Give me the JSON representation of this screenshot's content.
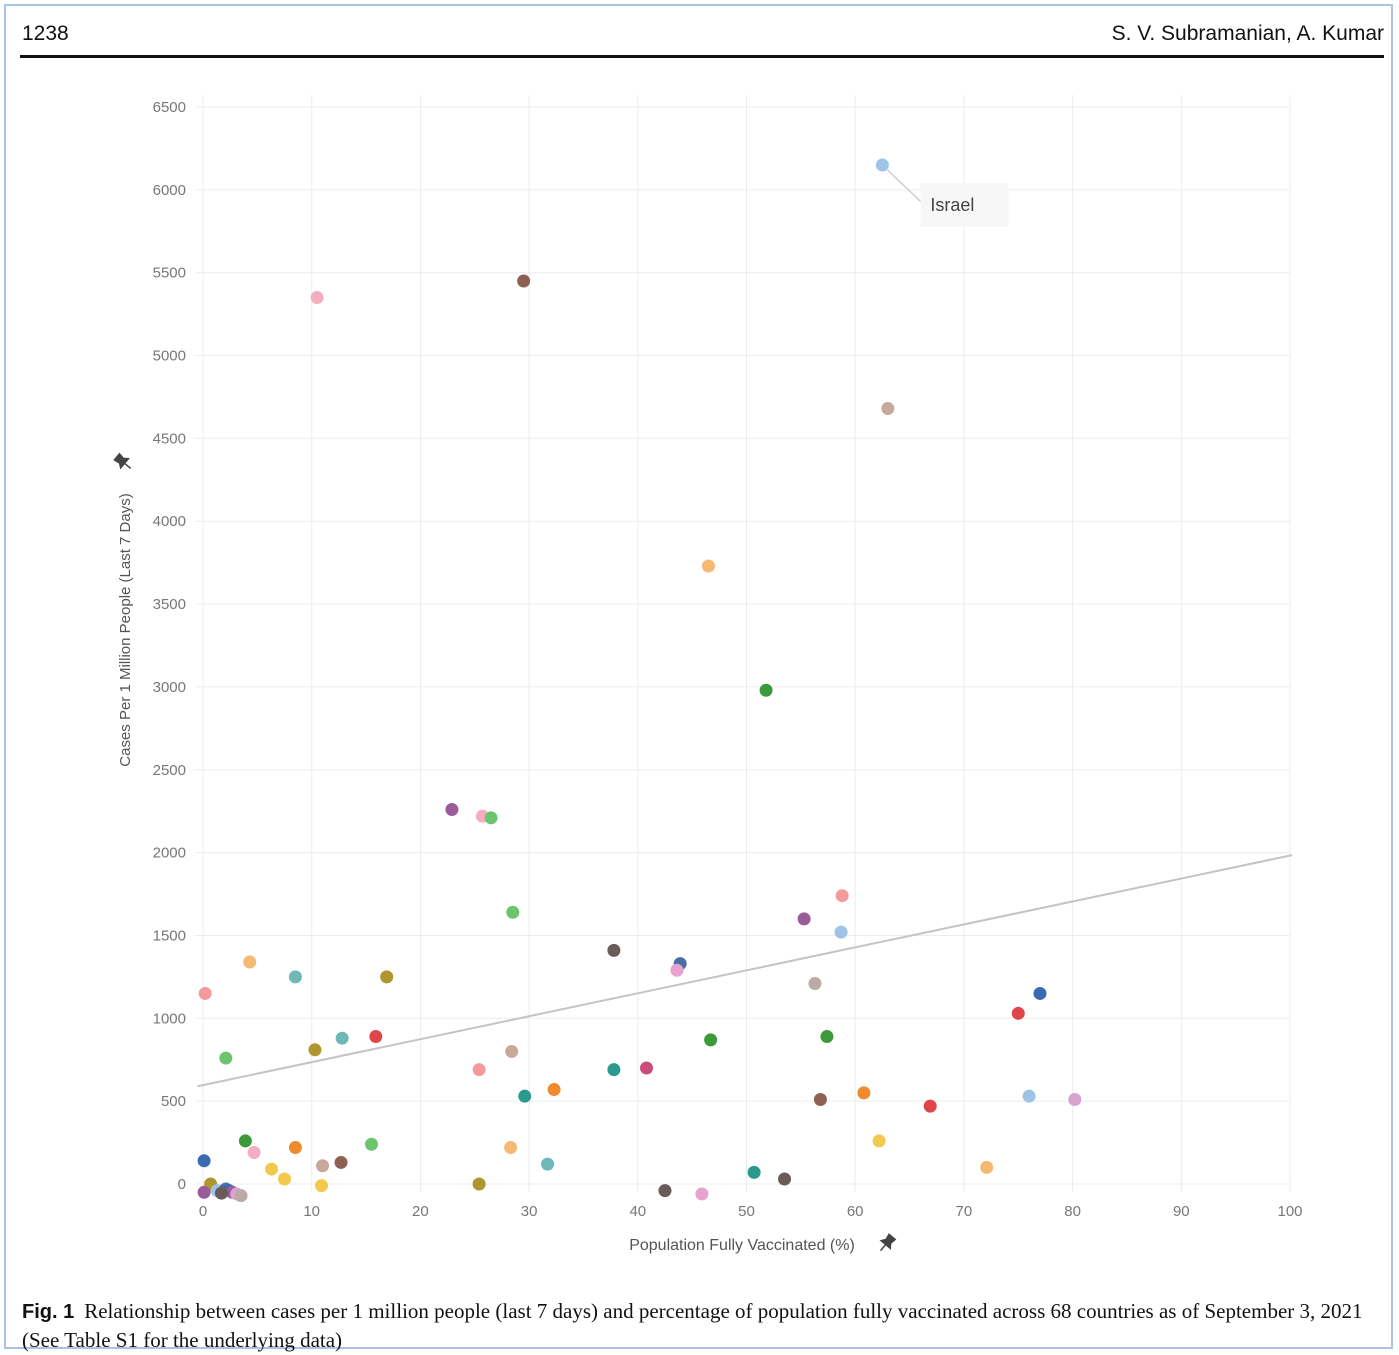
{
  "header": {
    "page_number": "1238",
    "authors": "S. V. Subramanian, A. Kumar"
  },
  "caption": {
    "label": "Fig. 1",
    "text": "Relationship between cases per 1 million people (last 7 days) and percentage of population fully vaccinated across 68 countries as of September 3, 2021 (See Table S1 for the underlying data)"
  },
  "chart_data": {
    "type": "scatter",
    "xlabel": "Population Fully Vaccinated (%)",
    "ylabel": "Cases Per 1 Million People (Last 7 Days)",
    "xlim": [
      0,
      100
    ],
    "ylim": [
      0,
      6500
    ],
    "xticks": [
      "0",
      "10",
      "20",
      "30",
      "40",
      "50",
      "60",
      "70",
      "80",
      "90",
      "100"
    ],
    "yticks": [
      "0",
      "500",
      "1000",
      "1500",
      "2000",
      "2500",
      "3000",
      "3500",
      "4000",
      "4500",
      "5000",
      "5500",
      "6000",
      "6500"
    ],
    "grid": true,
    "pin_icon": "pin-icon",
    "trendline": {
      "x": [
        -0.5,
        100.2
      ],
      "y": [
        590,
        1985
      ],
      "color": "#c4c4c4"
    },
    "annotations": [
      {
        "text": "Israel",
        "x": 62.5,
        "y": 6150
      }
    ],
    "points": [
      {
        "x": 62.5,
        "y": 6150,
        "color": "#9dc3e6"
      },
      {
        "x": 29.5,
        "y": 5450,
        "color": "#8c6151"
      },
      {
        "x": 10.5,
        "y": 5350,
        "color": "#f4adc1"
      },
      {
        "x": 63,
        "y": 4680,
        "color": "#c9a89b"
      },
      {
        "x": 46.5,
        "y": 3730,
        "color": "#f5b971"
      },
      {
        "x": 51.8,
        "y": 2980,
        "color": "#3b9b3b"
      },
      {
        "x": 22.9,
        "y": 2260,
        "color": "#9b5b9b"
      },
      {
        "x": 25.7,
        "y": 2220,
        "color": "#f4adc1"
      },
      {
        "x": 26.5,
        "y": 2210,
        "color": "#6cc46c"
      },
      {
        "x": 28.5,
        "y": 1640,
        "color": "#6cc46c"
      },
      {
        "x": 58.8,
        "y": 1740,
        "color": "#f49a9a"
      },
      {
        "x": 55.3,
        "y": 1600,
        "color": "#9b5b9b"
      },
      {
        "x": 58.7,
        "y": 1520,
        "color": "#9dc3e6"
      },
      {
        "x": 37.8,
        "y": 1410,
        "color": "#6b5a5a"
      },
      {
        "x": 43.9,
        "y": 1330,
        "color": "#4a6fa5"
      },
      {
        "x": 43.6,
        "y": 1290,
        "color": "#e7a2cf"
      },
      {
        "x": 56.3,
        "y": 1210,
        "color": "#bcaaa4"
      },
      {
        "x": 77,
        "y": 1150,
        "color": "#3a6bb0"
      },
      {
        "x": 75,
        "y": 1030,
        "color": "#e0454a"
      },
      {
        "x": 0.2,
        "y": 1150,
        "color": "#f49a9a"
      },
      {
        "x": 4.3,
        "y": 1340,
        "color": "#f5b971"
      },
      {
        "x": 8.5,
        "y": 1250,
        "color": "#6fb8b8"
      },
      {
        "x": 16.9,
        "y": 1250,
        "color": "#b0962e"
      },
      {
        "x": 12.8,
        "y": 880,
        "color": "#6fb8b8"
      },
      {
        "x": 15.9,
        "y": 890,
        "color": "#e0454a"
      },
      {
        "x": 10.3,
        "y": 810,
        "color": "#b0962e"
      },
      {
        "x": 2.1,
        "y": 760,
        "color": "#6cc46c"
      },
      {
        "x": 46.7,
        "y": 870,
        "color": "#3b9b3b"
      },
      {
        "x": 57.4,
        "y": 890,
        "color": "#3b9b3b"
      },
      {
        "x": 28.4,
        "y": 800,
        "color": "#c9a89b"
      },
      {
        "x": 25.4,
        "y": 690,
        "color": "#f49a9a"
      },
      {
        "x": 37.8,
        "y": 690,
        "color": "#2a9a8f"
      },
      {
        "x": 40.8,
        "y": 700,
        "color": "#c94c7a"
      },
      {
        "x": 29.6,
        "y": 530,
        "color": "#2a9a8f"
      },
      {
        "x": 32.3,
        "y": 570,
        "color": "#ef8b2c"
      },
      {
        "x": 56.8,
        "y": 510,
        "color": "#8c6151"
      },
      {
        "x": 60.8,
        "y": 550,
        "color": "#ef8b2c"
      },
      {
        "x": 66.9,
        "y": 470,
        "color": "#e0454a"
      },
      {
        "x": 76,
        "y": 530,
        "color": "#9dc3e6"
      },
      {
        "x": 80.2,
        "y": 510,
        "color": "#d9a3d0"
      },
      {
        "x": 62.2,
        "y": 260,
        "color": "#f2c94c"
      },
      {
        "x": 72.1,
        "y": 100,
        "color": "#f5b971"
      },
      {
        "x": 50.7,
        "y": 70,
        "color": "#2a9a8f"
      },
      {
        "x": 53.5,
        "y": 30,
        "color": "#6b5a5a"
      },
      {
        "x": 42.5,
        "y": -40,
        "color": "#6b5a5a"
      },
      {
        "x": 45.9,
        "y": -60,
        "color": "#e7a2cf"
      },
      {
        "x": 31.7,
        "y": 120,
        "color": "#6fb8b8"
      },
      {
        "x": 28.3,
        "y": 220,
        "color": "#f5b971"
      },
      {
        "x": 25.4,
        "y": 0,
        "color": "#b0962e"
      },
      {
        "x": 15.5,
        "y": 240,
        "color": "#6cc46c"
      },
      {
        "x": 12.7,
        "y": 130,
        "color": "#8c6151"
      },
      {
        "x": 11,
        "y": 110,
        "color": "#c9a89b"
      },
      {
        "x": 10.9,
        "y": -10,
        "color": "#f2c94c"
      },
      {
        "x": 8.5,
        "y": 220,
        "color": "#ef8b2c"
      },
      {
        "x": 7.5,
        "y": 30,
        "color": "#f2c94c"
      },
      {
        "x": 6.3,
        "y": 90,
        "color": "#f2c94c"
      },
      {
        "x": 4.7,
        "y": 190,
        "color": "#f4adc1"
      },
      {
        "x": 3.9,
        "y": 260,
        "color": "#3b9b3b"
      },
      {
        "x": 0.1,
        "y": 140,
        "color": "#3a6bb0"
      },
      {
        "x": 0.7,
        "y": 0,
        "color": "#b0962e"
      },
      {
        "x": 0.1,
        "y": -50,
        "color": "#9b5b9b"
      },
      {
        "x": 1.3,
        "y": -40,
        "color": "#9dc3e6"
      },
      {
        "x": 2.1,
        "y": -30,
        "color": "#4a6fa5"
      },
      {
        "x": 2.4,
        "y": -40,
        "color": "#3a6bb0"
      },
      {
        "x": 2.7,
        "y": -50,
        "color": "#9b5b9b"
      },
      {
        "x": 3.1,
        "y": -60,
        "color": "#d9a3d0"
      },
      {
        "x": 1.7,
        "y": -55,
        "color": "#6b5a5a"
      },
      {
        "x": 3.5,
        "y": -70,
        "color": "#bcaaa4"
      }
    ]
  }
}
